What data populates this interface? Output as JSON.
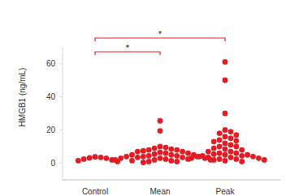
{
  "chart_data": {
    "type": "strip",
    "y_label": "HMGB1 (ng/mL)",
    "categories": [
      "Control",
      "Mean",
      "Peak"
    ],
    "values": [
      [
        3.2,
        3.8,
        2.5,
        3.5,
        1.0,
        2.0,
        3.0,
        1.5
      ],
      [
        25.5,
        19.5,
        10,
        9.5,
        9,
        8.5,
        8,
        8,
        7.5,
        7,
        7,
        6.5,
        6,
        6,
        5.5,
        5,
        5,
        5,
        4.5,
        4.5,
        4,
        4,
        4,
        3.5,
        3.5,
        3,
        3,
        3,
        2.5,
        2.5,
        2,
        2,
        2,
        1.5,
        1.5,
        1,
        1,
        0.5
      ],
      [
        61,
        50,
        30,
        20,
        19,
        18,
        17,
        16,
        15,
        14,
        13.5,
        13,
        12,
        11,
        10,
        10,
        9,
        8.5,
        8,
        7,
        7,
        6,
        6,
        5.5,
        5,
        5,
        4.5,
        4.5,
        4,
        4,
        3.5,
        3.5,
        3,
        3,
        2.5,
        2.5,
        2,
        2,
        1.5,
        1
      ]
    ],
    "color": "#e31b23",
    "marker": "circle",
    "ylim": [
      -10,
      70
    ],
    "yticks": [
      0,
      20,
      40,
      60
    ],
    "grid": false,
    "annotations": [
      {
        "from": 0,
        "to": 1,
        "label": "*"
      },
      {
        "from": 0,
        "to": 2,
        "label": "*"
      }
    ]
  }
}
